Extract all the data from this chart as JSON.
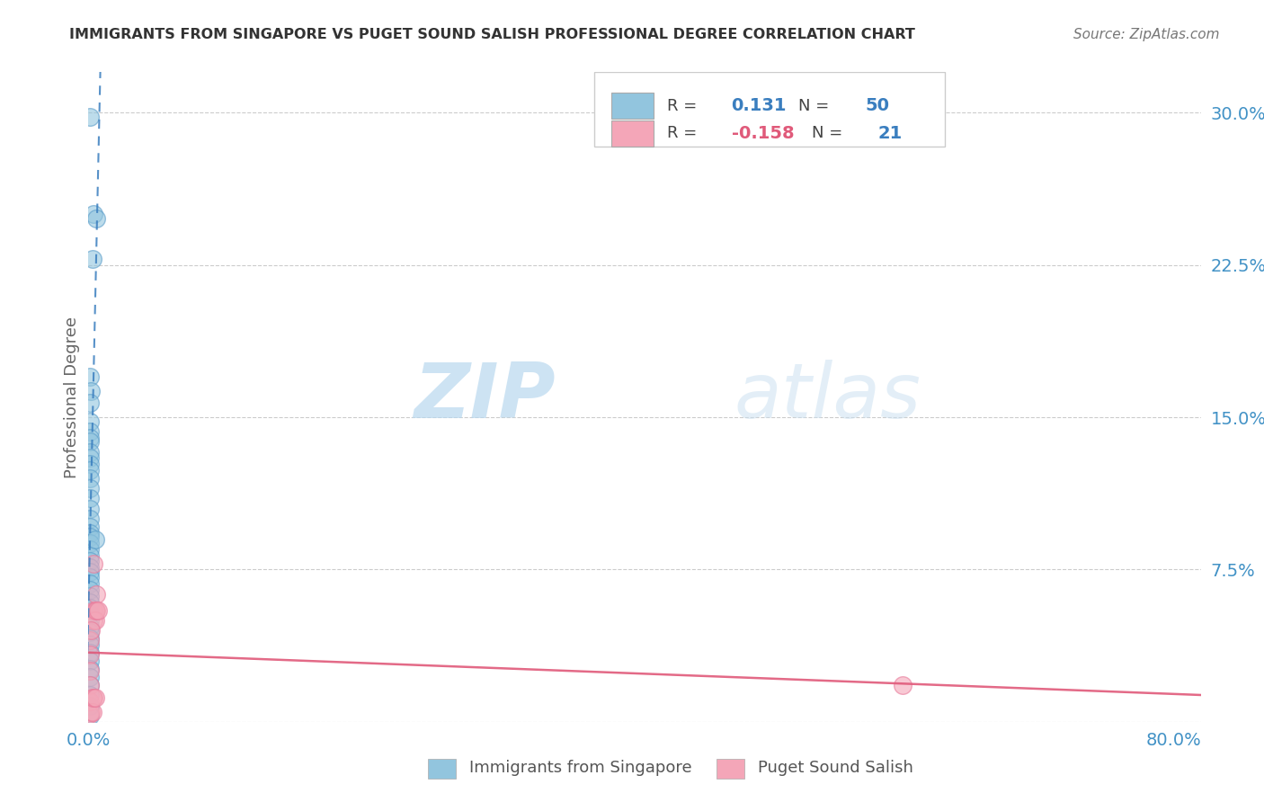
{
  "title": "IMMIGRANTS FROM SINGAPORE VS PUGET SOUND SALISH PROFESSIONAL DEGREE CORRELATION CHART",
  "source": "Source: ZipAtlas.com",
  "ylabel_label": "Professional Degree",
  "legend_labels": [
    "Immigrants from Singapore",
    "Puget Sound Salish"
  ],
  "R_blue": 0.131,
  "N_blue": 50,
  "R_pink": -0.158,
  "N_pink": 21,
  "blue_color": "#92c5de",
  "pink_color": "#f4a6b8",
  "blue_edge_color": "#5b9dc9",
  "pink_edge_color": "#e87a9a",
  "blue_line_color": "#3a7ebf",
  "pink_line_color": "#e05a7a",
  "blue_scatter": [
    [
      0.001,
      0.298
    ],
    [
      0.003,
      0.228
    ],
    [
      0.004,
      0.25
    ],
    [
      0.006,
      0.248
    ],
    [
      0.001,
      0.17
    ],
    [
      0.002,
      0.163
    ],
    [
      0.001,
      0.157
    ],
    [
      0.001,
      0.148
    ],
    [
      0.001,
      0.143
    ],
    [
      0.001,
      0.14
    ],
    [
      0.001,
      0.138
    ],
    [
      0.001,
      0.133
    ],
    [
      0.001,
      0.13
    ],
    [
      0.001,
      0.127
    ],
    [
      0.001,
      0.124
    ],
    [
      0.001,
      0.12
    ],
    [
      0.001,
      0.115
    ],
    [
      0.001,
      0.11
    ],
    [
      0.001,
      0.105
    ],
    [
      0.001,
      0.1
    ],
    [
      0.001,
      0.096
    ],
    [
      0.001,
      0.093
    ],
    [
      0.001,
      0.091
    ],
    [
      0.001,
      0.088
    ],
    [
      0.001,
      0.085
    ],
    [
      0.001,
      0.082
    ],
    [
      0.001,
      0.079
    ],
    [
      0.001,
      0.076
    ],
    [
      0.001,
      0.074
    ],
    [
      0.001,
      0.071
    ],
    [
      0.001,
      0.068
    ],
    [
      0.001,
      0.065
    ],
    [
      0.001,
      0.062
    ],
    [
      0.001,
      0.059
    ],
    [
      0.001,
      0.056
    ],
    [
      0.001,
      0.053
    ],
    [
      0.001,
      0.05
    ],
    [
      0.001,
      0.047
    ],
    [
      0.001,
      0.044
    ],
    [
      0.001,
      0.041
    ],
    [
      0.001,
      0.038
    ],
    [
      0.001,
      0.034
    ],
    [
      0.001,
      0.03
    ],
    [
      0.001,
      0.026
    ],
    [
      0.001,
      0.022
    ],
    [
      0.001,
      0.018
    ],
    [
      0.001,
      0.013
    ],
    [
      0.001,
      0.008
    ],
    [
      0.001,
      0.003
    ],
    [
      0.005,
      0.09
    ]
  ],
  "pink_scatter": [
    [
      0.001,
      0.04
    ],
    [
      0.001,
      0.033
    ],
    [
      0.001,
      0.025
    ],
    [
      0.001,
      0.018
    ],
    [
      0.001,
      0.01
    ],
    [
      0.001,
      0.004
    ],
    [
      0.002,
      0.005
    ],
    [
      0.003,
      0.012
    ],
    [
      0.003,
      0.005
    ],
    [
      0.004,
      0.078
    ],
    [
      0.004,
      0.055
    ],
    [
      0.004,
      0.05
    ],
    [
      0.004,
      0.012
    ],
    [
      0.005,
      0.055
    ],
    [
      0.005,
      0.05
    ],
    [
      0.005,
      0.012
    ],
    [
      0.006,
      0.063
    ],
    [
      0.006,
      0.055
    ],
    [
      0.007,
      0.055
    ],
    [
      0.6,
      0.018
    ],
    [
      0.002,
      0.045
    ]
  ],
  "xlim": [
    0.0,
    0.82
  ],
  "ylim": [
    0.0,
    0.32
  ],
  "yticks": [
    0.0,
    0.075,
    0.15,
    0.225,
    0.3
  ],
  "xticks": [
    0.0,
    0.1,
    0.2,
    0.3,
    0.4,
    0.5,
    0.6,
    0.7,
    0.8
  ],
  "watermark_zip": "ZIP",
  "watermark_atlas": "atlas",
  "title_color": "#333333",
  "grid_color": "#cccccc",
  "right_tick_color": "#4292c6",
  "bottom_tick_color": "#4292c6"
}
